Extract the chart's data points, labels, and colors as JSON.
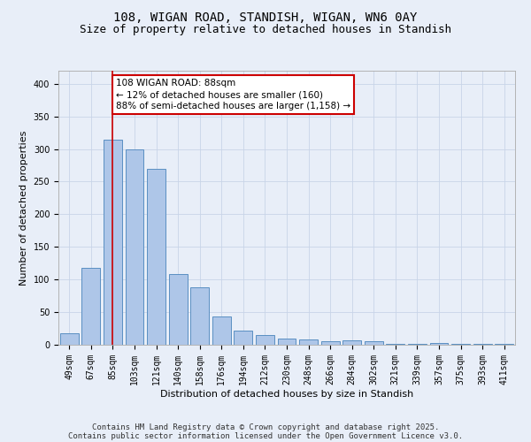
{
  "title": "108, WIGAN ROAD, STANDISH, WIGAN, WN6 0AY",
  "subtitle": "Size of property relative to detached houses in Standish",
  "xlabel": "Distribution of detached houses by size in Standish",
  "ylabel": "Number of detached properties",
  "categories": [
    "49sqm",
    "67sqm",
    "85sqm",
    "103sqm",
    "121sqm",
    "140sqm",
    "158sqm",
    "176sqm",
    "194sqm",
    "212sqm",
    "230sqm",
    "248sqm",
    "266sqm",
    "284sqm",
    "302sqm",
    "321sqm",
    "339sqm",
    "357sqm",
    "375sqm",
    "393sqm",
    "411sqm"
  ],
  "values": [
    18,
    118,
    315,
    300,
    270,
    108,
    88,
    43,
    22,
    15,
    9,
    8,
    6,
    7,
    5,
    2,
    1,
    3,
    1,
    2,
    1
  ],
  "bar_color": "#aec6e8",
  "bar_edge_color": "#5a8fc2",
  "vline_x": 2,
  "vline_color": "#cc0000",
  "annotation_line1": "108 WIGAN ROAD: 88sqm",
  "annotation_line2": "← 12% of detached houses are smaller (160)",
  "annotation_line3": "88% of semi-detached houses are larger (1,158) →",
  "annotation_box_color": "#cc0000",
  "annotation_text_color": "#000000",
  "ylim": [
    0,
    420
  ],
  "yticks": [
    0,
    50,
    100,
    150,
    200,
    250,
    300,
    350,
    400
  ],
  "background_color": "#e8eef8",
  "grid_color": "#c8d4e8",
  "footer_line1": "Contains HM Land Registry data © Crown copyright and database right 2025.",
  "footer_line2": "Contains public sector information licensed under the Open Government Licence v3.0.",
  "title_fontsize": 10,
  "subtitle_fontsize": 9,
  "axis_label_fontsize": 8,
  "tick_fontsize": 7,
  "annotation_fontsize": 7.5,
  "footer_fontsize": 6.5
}
